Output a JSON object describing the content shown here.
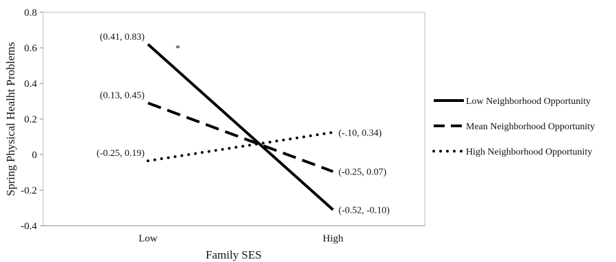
{
  "chart_data": {
    "type": "line",
    "categories": [
      "Low",
      "High"
    ],
    "xlabel": "Family SES",
    "ylabel": "Spring Physical Healht Problems",
    "ylim": [
      -0.4,
      0.8
    ],
    "yticks": [
      "0.8",
      "0.6",
      "0.4",
      "0.2",
      "0",
      "-0.2",
      "-0.4"
    ],
    "ytick_values": [
      0.8,
      0.6,
      0.4,
      0.2,
      0,
      -0.2,
      -0.4
    ],
    "grid": false,
    "legend_position": "right",
    "series": [
      {
        "name": "Low Neighborhood Opportunity",
        "style": "solid",
        "values": [
          0.62,
          -0.31
        ],
        "point_labels": [
          "(0.41, 0.83)",
          "(-0.52, -0.10)"
        ]
      },
      {
        "name": "Mean Neighborhood Opportunity",
        "style": "dashed",
        "values": [
          0.29,
          -0.095
        ],
        "point_labels": [
          "(0.13, 0.45)",
          "(-0.25, 0.07)"
        ]
      },
      {
        "name": "High Neighborhood Opportunity",
        "style": "dotted",
        "values": [
          -0.035,
          0.125
        ],
        "point_labels": [
          "(-0.25, 0.19)",
          "(-.10, 0.34)"
        ]
      }
    ],
    "annotations": [
      {
        "text": "*"
      }
    ]
  }
}
